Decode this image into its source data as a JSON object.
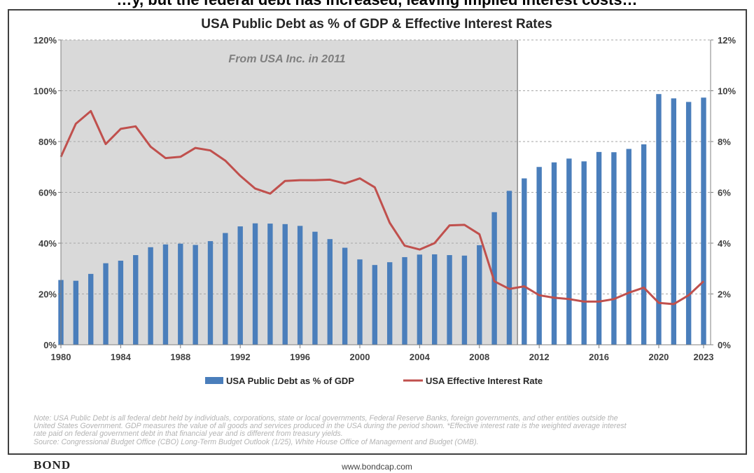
{
  "header": {
    "clipped_text": "…y, but the federal debt has increased, leaving implied interest costs…"
  },
  "footer": {
    "note_lines": [
      "Note: USA Public Debt is all federal debt held by individuals, corporations, state or local governments, Federal Reserve Banks, foreign governments, and other entities outside the",
      "United States Government. GDP measures the value of all goods and services produced in the USA during the period shown. *Effective interest rate is the weighted average interest",
      "rate paid on federal government debt in that financial year and is different from treasury yields.",
      "Source: Congressional Budget Office (CBO) Long-Term Budget Outlook (1/25), White House Office of Management and Budget (OMB)."
    ],
    "brand": "BOND",
    "url": "www.bondcap.com"
  },
  "colors": {
    "bar": "#4a7ebb",
    "line": "#c0504d",
    "shade": "#d9d9d9",
    "grid": "#a6a6a6",
    "axis_text": "#404040"
  },
  "chart_data": {
    "type": "bar+line",
    "title": "USA Public Debt as % of GDP & Effective Interest Rates",
    "annotation": "From USA Inc. in 2011",
    "shaded_range": [
      1980,
      2010
    ],
    "x": [
      1980,
      1981,
      1982,
      1983,
      1984,
      1985,
      1986,
      1987,
      1988,
      1989,
      1990,
      1991,
      1992,
      1993,
      1994,
      1995,
      1996,
      1997,
      1998,
      1999,
      2000,
      2001,
      2002,
      2003,
      2004,
      2005,
      2006,
      2007,
      2008,
      2009,
      2010,
      2011,
      2012,
      2013,
      2014,
      2015,
      2016,
      2017,
      2018,
      2019,
      2020,
      2021,
      2022,
      2023
    ],
    "x_tick_labels": [
      "1980",
      "1984",
      "1988",
      "1992",
      "1996",
      "2000",
      "2004",
      "2008",
      "2012",
      "2016",
      "2020",
      "2023"
    ],
    "x_tick_years": [
      1980,
      1984,
      1988,
      1992,
      1996,
      2000,
      2004,
      2008,
      2012,
      2016,
      2020,
      2023
    ],
    "left_axis": {
      "ylim": [
        0,
        120
      ],
      "ticks": [
        0,
        20,
        40,
        60,
        80,
        100,
        120
      ],
      "tick_labels": [
        "0%",
        "20%",
        "40%",
        "60%",
        "80%",
        "100%",
        "120%"
      ]
    },
    "right_axis": {
      "ylim": [
        0,
        12
      ],
      "ticks": [
        0,
        2,
        4,
        6,
        8,
        10,
        12
      ],
      "tick_labels": [
        "0%",
        "2%",
        "4%",
        "6%",
        "8%",
        "10%",
        "12%"
      ]
    },
    "grid": true,
    "legend_position": "bottom",
    "series": [
      {
        "name": "USA Public Debt as % of GDP",
        "type": "bar",
        "axis": "left",
        "values": [
          25.5,
          25.2,
          27.9,
          32.1,
          33.1,
          35.3,
          38.4,
          39.5,
          39.8,
          39.3,
          40.8,
          44.0,
          46.6,
          47.8,
          47.7,
          47.5,
          46.8,
          44.5,
          41.6,
          38.2,
          33.6,
          31.4,
          32.5,
          34.5,
          35.5,
          35.6,
          35.3,
          35.1,
          39.2,
          52.2,
          60.6,
          65.5,
          70.0,
          71.8,
          73.3,
          72.2,
          75.9,
          75.8,
          77.1,
          78.9,
          98.7,
          97.0,
          95.6,
          97.3
        ]
      },
      {
        "name": "USA Effective Interest Rate",
        "type": "line",
        "axis": "right",
        "values": [
          7.4,
          8.7,
          9.2,
          7.9,
          8.5,
          8.6,
          7.8,
          7.35,
          7.4,
          7.75,
          7.65,
          7.25,
          6.65,
          6.15,
          5.95,
          6.45,
          6.48,
          6.48,
          6.5,
          6.35,
          6.55,
          6.2,
          4.8,
          3.9,
          3.75,
          4.0,
          4.7,
          4.72,
          4.35,
          2.5,
          2.2,
          2.3,
          1.95,
          1.85,
          1.8,
          1.7,
          1.7,
          1.8,
          2.05,
          2.25,
          1.65,
          1.6,
          1.95,
          2.5
        ]
      }
    ]
  }
}
